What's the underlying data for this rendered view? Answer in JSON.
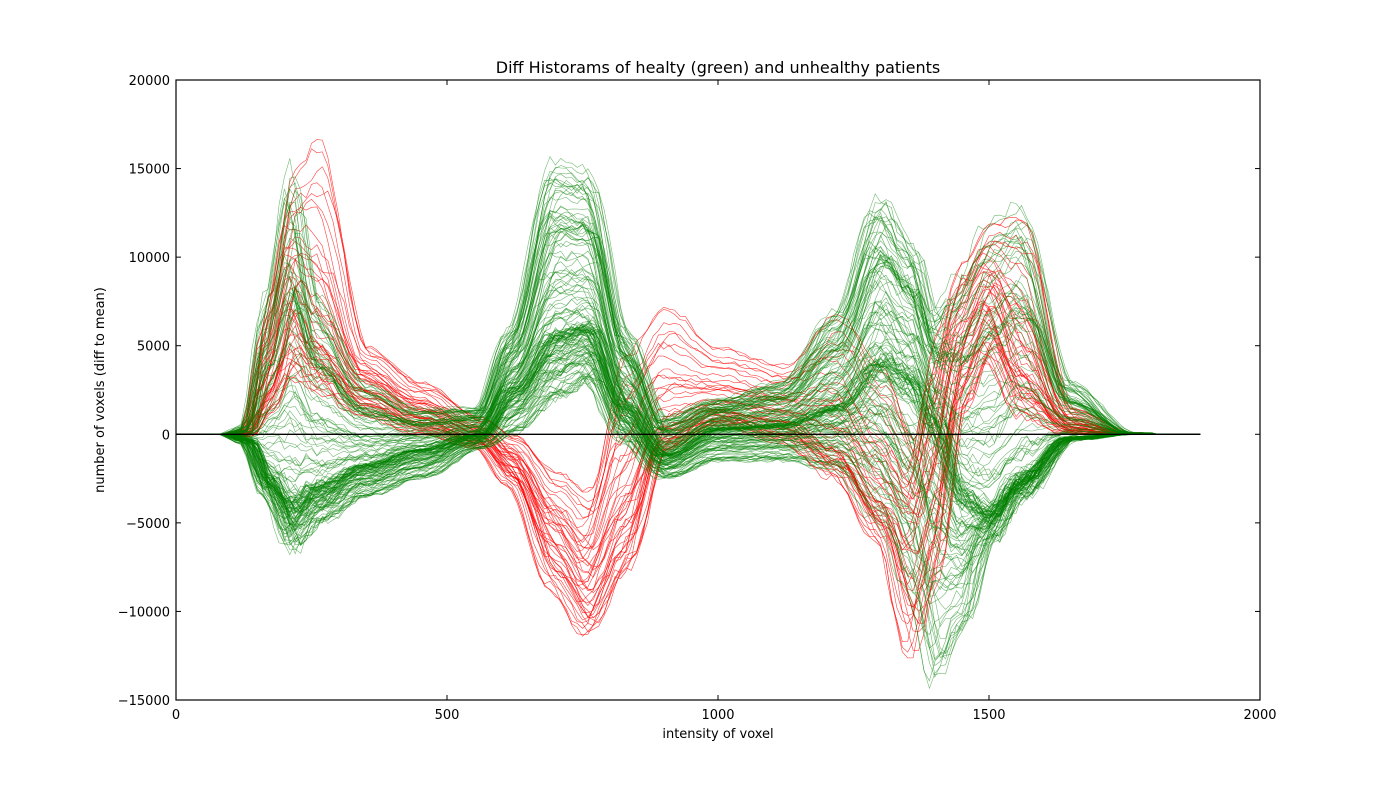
{
  "chart_data": {
    "type": "line",
    "title": "Diff Historams of healty (green) and unhealthy patients",
    "xlabel": "intensity of voxel",
    "ylabel": "number of voxels (diff to mean)",
    "xlim": [
      0,
      2000
    ],
    "ylim": [
      -15000,
      20000
    ],
    "xticks": [
      0,
      500,
      1000,
      1500,
      2000
    ],
    "yticks": [
      -15000,
      -10000,
      -5000,
      0,
      5000,
      10000,
      15000,
      20000
    ],
    "xtick_labels": [
      "0",
      "500",
      "1000",
      "1500",
      "2000"
    ],
    "ytick_labels": [
      "−15000",
      "−10000",
      "−5000",
      "0",
      "5000",
      "10000",
      "15000",
      "20000"
    ],
    "grid": false,
    "legend": "none",
    "x_range_of_curves": [
      0,
      1890
    ],
    "colors": {
      "healthy": "#008000",
      "unhealthy": "#ff0000",
      "mean_line": "#000000"
    },
    "series": [
      {
        "group": "healthy",
        "color": "#008000",
        "count": 150,
        "shape_anchors": {
          "x": [
            0,
            90,
            130,
            170,
            215,
            260,
            350,
            450,
            560,
            620,
            700,
            760,
            830,
            900,
            1000,
            1120,
            1220,
            1300,
            1360,
            1400,
            1450,
            1500,
            1560,
            1650,
            1760,
            1890
          ],
          "typical_y": [
            0,
            0,
            -300,
            -2500,
            -4000,
            -3000,
            -1800,
            -900,
            0,
            2500,
            5500,
            6000,
            1500,
            -1200,
            300,
            500,
            1500,
            4000,
            3000,
            500,
            -3500,
            -4500,
            -2500,
            -200,
            0,
            0
          ],
          "min_y": [
            0,
            0,
            -500,
            -3500,
            -6500,
            -5000,
            -3500,
            -2500,
            -800,
            0,
            2000,
            3000,
            -500,
            -2500,
            -1500,
            -1500,
            -2000,
            -5000,
            -9000,
            -14000,
            -11000,
            -6000,
            -3500,
            -300,
            0,
            0
          ],
          "max_y": [
            0,
            0,
            500,
            8000,
            15500,
            8000,
            3000,
            1500,
            1500,
            6000,
            15500,
            15000,
            6000,
            1000,
            2000,
            3000,
            7000,
            13500,
            11000,
            7000,
            9000,
            12000,
            13000,
            3000,
            100,
            0
          ]
        }
      },
      {
        "group": "unhealthy",
        "color": "#ff0000",
        "count": 45,
        "shape_anchors": {
          "x": [
            0,
            90,
            130,
            170,
            215,
            260,
            350,
            450,
            560,
            620,
            700,
            760,
            830,
            900,
            1000,
            1120,
            1220,
            1300,
            1360,
            1400,
            1450,
            1500,
            1560,
            1650,
            1760,
            1890
          ],
          "typical_y": [
            0,
            0,
            100,
            3000,
            8000,
            5500,
            2800,
            1200,
            0,
            -1500,
            -5500,
            -8000,
            -4000,
            500,
            1500,
            1000,
            -500,
            -3500,
            -5000,
            -1500,
            5000,
            8000,
            4000,
            500,
            0,
            0
          ],
          "min_y": [
            0,
            0,
            -200,
            1000,
            3000,
            2500,
            1000,
            0,
            -800,
            -3000,
            -9000,
            -11500,
            -8000,
            -1000,
            500,
            -500,
            -2500,
            -6000,
            -13000,
            -9000,
            1000,
            4000,
            1000,
            0,
            0,
            0
          ],
          "max_y": [
            0,
            0,
            300,
            8000,
            15000,
            17000,
            5000,
            3000,
            1000,
            0,
            -2000,
            -3000,
            5000,
            7500,
            5000,
            4000,
            7000,
            4000,
            0,
            6000,
            10000,
            12000,
            12500,
            1500,
            100,
            0
          ]
        }
      }
    ],
    "mean_line": {
      "y": 0,
      "x_range": [
        0,
        1890
      ]
    }
  }
}
